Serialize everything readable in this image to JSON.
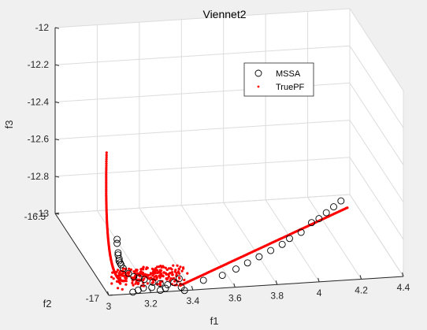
{
  "chart_data": {
    "type": "scatter",
    "dims": 3,
    "title": "Viennet2",
    "xlabel": "f1",
    "ylabel": "f2",
    "zlabel": "f3",
    "xlim": [
      3,
      4.4
    ],
    "ylim": [
      -17,
      -16.5
    ],
    "zlim": [
      -13,
      -12
    ],
    "xticks": [
      "3",
      "3.2",
      "3.4",
      "3.6",
      "3.8",
      "4",
      "4.2",
      "4.4"
    ],
    "yticks": [
      "-17",
      "-16.5"
    ],
    "zticks": [
      "-13",
      "-12.8",
      "-12.6",
      "-12.4",
      "-12.2",
      "-12"
    ],
    "grid": true,
    "legend_position": "top-right",
    "series": [
      {
        "name": "MSSA",
        "marker": "circle",
        "color": "#000000",
        "points": [
          [
            3.05,
            -16.98,
            -12.72
          ],
          [
            3.06,
            -16.96,
            -12.76
          ],
          [
            3.07,
            -16.95,
            -12.82
          ],
          [
            3.08,
            -16.93,
            -12.85
          ],
          [
            3.09,
            -16.92,
            -12.88
          ],
          [
            3.1,
            -16.9,
            -12.91
          ],
          [
            3.11,
            -16.89,
            -12.93
          ],
          [
            3.12,
            -16.88,
            -12.95
          ],
          [
            3.13,
            -16.88,
            -12.97
          ],
          [
            3.15,
            -16.89,
            -12.99
          ],
          [
            3.17,
            -16.9,
            -13.0
          ],
          [
            3.19,
            -16.91,
            -13.0
          ],
          [
            3.21,
            -16.92,
            -13.0
          ],
          [
            3.24,
            -16.94,
            -13.0
          ],
          [
            3.27,
            -16.95,
            -13.0
          ],
          [
            3.3,
            -16.96,
            -13.0
          ],
          [
            3.33,
            -16.96,
            -12.99
          ],
          [
            3.36,
            -16.95,
            -12.98
          ],
          [
            3.25,
            -16.99,
            -13.0
          ],
          [
            3.28,
            -16.98,
            -13.0
          ],
          [
            3.12,
            -16.99,
            -13.0
          ],
          [
            3.15,
            -16.98,
            -13.0
          ],
          [
            3.18,
            -16.97,
            -13.0
          ],
          [
            3.22,
            -16.97,
            -13.0
          ],
          [
            3.35,
            -16.99,
            -12.99
          ],
          [
            3.46,
            -16.98,
            -12.97
          ],
          [
            3.55,
            -16.98,
            -12.95
          ],
          [
            3.62,
            -16.97,
            -12.93
          ],
          [
            3.68,
            -16.96,
            -12.91
          ],
          [
            3.74,
            -16.95,
            -12.89
          ],
          [
            3.8,
            -16.94,
            -12.87
          ],
          [
            3.86,
            -16.93,
            -12.85
          ],
          [
            3.9,
            -16.92,
            -12.83
          ],
          [
            3.96,
            -16.91,
            -12.81
          ],
          [
            4.02,
            -16.89,
            -12.78
          ],
          [
            4.06,
            -16.88,
            -12.77
          ],
          [
            4.1,
            -16.87,
            -12.75
          ],
          [
            4.14,
            -16.86,
            -12.73
          ],
          [
            4.18,
            -16.85,
            -12.71
          ],
          [
            3.36,
            -17.0,
            -13.0
          ]
        ]
      },
      {
        "name": "TruePF",
        "marker": "dot",
        "color": "#ff0000",
        "points": []
      }
    ]
  }
}
